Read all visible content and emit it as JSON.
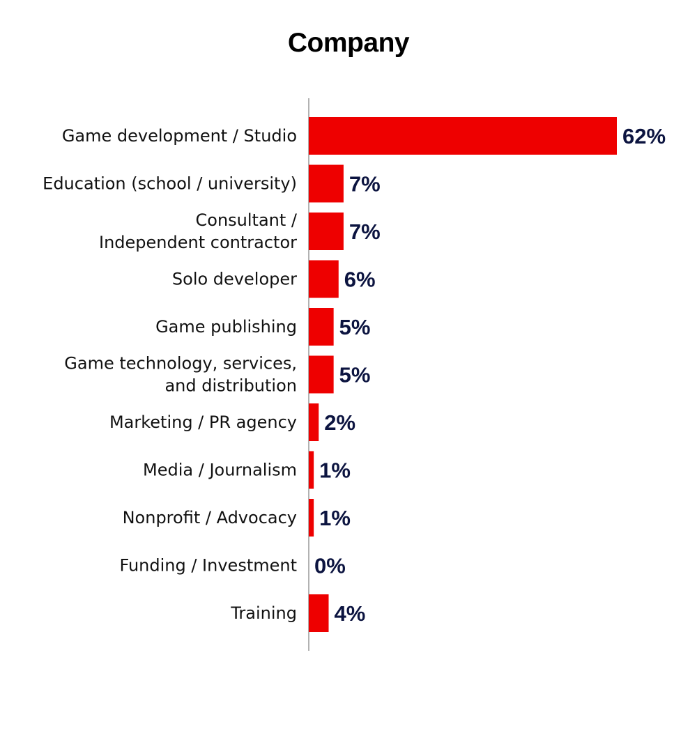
{
  "chart_data": {
    "type": "bar",
    "orientation": "horizontal",
    "title": "Company",
    "categories": [
      [
        "Game development / Studio"
      ],
      [
        "Education (school / university)"
      ],
      [
        "Consultant /",
        "Independent contractor"
      ],
      [
        "Solo developer"
      ],
      [
        "Game publishing"
      ],
      [
        "Game technology, services,",
        "and distribution"
      ],
      [
        "Marketing / PR agency"
      ],
      [
        "Media / Journalism"
      ],
      [
        "Nonprofit / Advocacy"
      ],
      [
        "Funding / Investment"
      ],
      [
        "Training"
      ]
    ],
    "values": [
      62,
      7,
      7,
      6,
      5,
      5,
      2,
      1,
      1,
      0,
      4
    ],
    "value_labels": [
      "62%",
      "7%",
      "7%",
      "6%",
      "5%",
      "5%",
      "2%",
      "1%",
      "1%",
      "0%",
      "4%"
    ],
    "xlim": [
      0,
      62
    ],
    "grid": false,
    "legend": "none",
    "colors": {
      "bar": "#ee0000",
      "value_label": "#0c1440",
      "axis": "#999999"
    }
  }
}
